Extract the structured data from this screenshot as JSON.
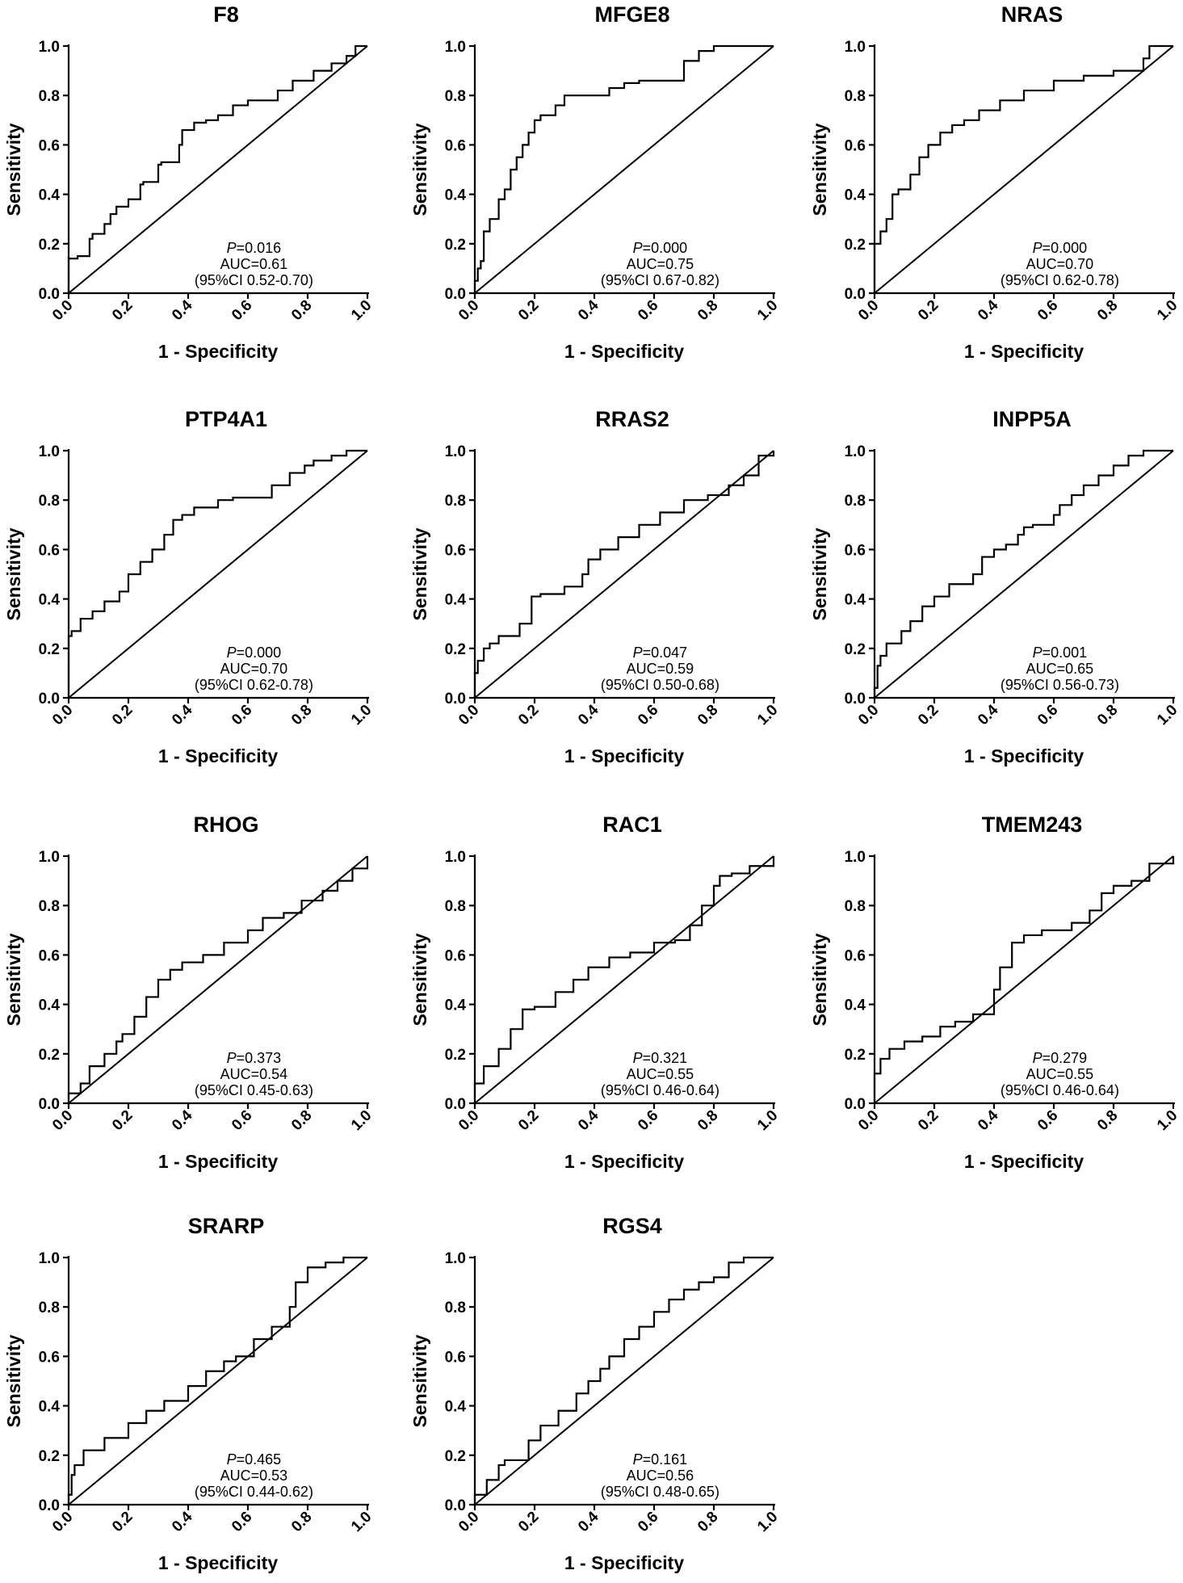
{
  "figure": {
    "xlabel": "1 - Specificity",
    "ylabel": "Sensitivity",
    "tick_labels": [
      "0.0",
      "0.2",
      "0.4",
      "0.6",
      "0.8",
      "1.0"
    ]
  },
  "chart_data": [
    {
      "type": "line",
      "title": "F8",
      "p_prefix": "P",
      "p_text": "=0.016",
      "auc_text": "AUC=0.61",
      "ci_text": "(95%CI 0.52-0.70)",
      "xlabel": "1 - Specificity",
      "ylabel": "Sensitivity",
      "xlim": [
        0,
        1
      ],
      "ylim": [
        0,
        1
      ],
      "roc": [
        [
          0,
          0
        ],
        [
          0,
          0.12
        ],
        [
          0.03,
          0.14
        ],
        [
          0.07,
          0.15
        ],
        [
          0.08,
          0.22
        ],
        [
          0.12,
          0.24
        ],
        [
          0.14,
          0.28
        ],
        [
          0.16,
          0.32
        ],
        [
          0.2,
          0.35
        ],
        [
          0.24,
          0.38
        ],
        [
          0.25,
          0.44
        ],
        [
          0.3,
          0.45
        ],
        [
          0.31,
          0.52
        ],
        [
          0.37,
          0.53
        ],
        [
          0.38,
          0.6
        ],
        [
          0.42,
          0.66
        ],
        [
          0.46,
          0.69
        ],
        [
          0.5,
          0.7
        ],
        [
          0.55,
          0.72
        ],
        [
          0.6,
          0.76
        ],
        [
          0.7,
          0.78
        ],
        [
          0.75,
          0.82
        ],
        [
          0.82,
          0.86
        ],
        [
          0.88,
          0.9
        ],
        [
          0.93,
          0.93
        ],
        [
          0.96,
          0.96
        ],
        [
          1,
          1
        ]
      ]
    },
    {
      "type": "line",
      "title": "MFGE8",
      "p_prefix": "P",
      "p_text": "=0.000",
      "auc_text": "AUC=0.75",
      "ci_text": "(95%CI 0.67-0.82)",
      "xlabel": "1 - Specificity",
      "ylabel": "Sensitivity",
      "xlim": [
        0,
        1
      ],
      "ylim": [
        0,
        1
      ],
      "roc": [
        [
          0,
          0
        ],
        [
          0.01,
          0.05
        ],
        [
          0.02,
          0.1
        ],
        [
          0.03,
          0.13
        ],
        [
          0.05,
          0.25
        ],
        [
          0.08,
          0.3
        ],
        [
          0.1,
          0.38
        ],
        [
          0.12,
          0.42
        ],
        [
          0.14,
          0.5
        ],
        [
          0.16,
          0.55
        ],
        [
          0.18,
          0.6
        ],
        [
          0.2,
          0.65
        ],
        [
          0.22,
          0.7
        ],
        [
          0.27,
          0.72
        ],
        [
          0.3,
          0.76
        ],
        [
          0.4,
          0.8
        ],
        [
          0.45,
          0.8
        ],
        [
          0.5,
          0.83
        ],
        [
          0.55,
          0.85
        ],
        [
          0.6,
          0.86
        ],
        [
          0.7,
          0.86
        ],
        [
          0.75,
          0.94
        ],
        [
          0.8,
          0.98
        ],
        [
          0.86,
          1
        ],
        [
          1,
          1
        ]
      ]
    },
    {
      "type": "line",
      "title": "NRAS",
      "p_prefix": "P",
      "p_text": "=0.000",
      "auc_text": "AUC=0.70",
      "ci_text": "(95%CI 0.62-0.78)",
      "xlabel": "1 - Specificity",
      "ylabel": "Sensitivity",
      "xlim": [
        0,
        1
      ],
      "ylim": [
        0,
        1
      ],
      "roc": [
        [
          0,
          0
        ],
        [
          0,
          0.12
        ],
        [
          0.02,
          0.2
        ],
        [
          0.04,
          0.25
        ],
        [
          0.06,
          0.3
        ],
        [
          0.08,
          0.4
        ],
        [
          0.12,
          0.42
        ],
        [
          0.15,
          0.48
        ],
        [
          0.18,
          0.55
        ],
        [
          0.22,
          0.6
        ],
        [
          0.26,
          0.65
        ],
        [
          0.3,
          0.68
        ],
        [
          0.35,
          0.7
        ],
        [
          0.42,
          0.74
        ],
        [
          0.5,
          0.78
        ],
        [
          0.6,
          0.82
        ],
        [
          0.7,
          0.86
        ],
        [
          0.8,
          0.88
        ],
        [
          0.85,
          0.9
        ],
        [
          0.9,
          0.9
        ],
        [
          0.92,
          0.95
        ],
        [
          0.95,
          1
        ],
        [
          1,
          1
        ]
      ]
    },
    {
      "type": "line",
      "title": "PTP4A1",
      "p_prefix": "P",
      "p_text": "=0.000",
      "auc_text": "AUC=0.70",
      "ci_text": "(95%CI 0.62-0.78)",
      "xlabel": "1 - Specificity",
      "ylabel": "Sensitivity",
      "xlim": [
        0,
        1
      ],
      "ylim": [
        0,
        1
      ],
      "roc": [
        [
          0,
          0
        ],
        [
          0,
          0.16
        ],
        [
          0.01,
          0.25
        ],
        [
          0.04,
          0.27
        ],
        [
          0.08,
          0.32
        ],
        [
          0.12,
          0.35
        ],
        [
          0.17,
          0.39
        ],
        [
          0.2,
          0.43
        ],
        [
          0.24,
          0.5
        ],
        [
          0.28,
          0.55
        ],
        [
          0.32,
          0.6
        ],
        [
          0.35,
          0.66
        ],
        [
          0.38,
          0.72
        ],
        [
          0.42,
          0.74
        ],
        [
          0.5,
          0.77
        ],
        [
          0.55,
          0.8
        ],
        [
          0.6,
          0.81
        ],
        [
          0.68,
          0.81
        ],
        [
          0.7,
          0.86
        ],
        [
          0.74,
          0.86
        ],
        [
          0.79,
          0.91
        ],
        [
          0.82,
          0.94
        ],
        [
          0.88,
          0.96
        ],
        [
          0.93,
          0.98
        ],
        [
          1,
          1
        ]
      ]
    },
    {
      "type": "line",
      "title": "RRAS2",
      "p_prefix": "P",
      "p_text": "=0.047",
      "auc_text": "AUC=0.59",
      "ci_text": "(95%CI 0.50-0.68)",
      "xlabel": "1 - Specificity",
      "ylabel": "Sensitivity",
      "xlim": [
        0,
        1
      ],
      "ylim": [
        0,
        1
      ],
      "roc": [
        [
          0,
          0
        ],
        [
          0.01,
          0.1
        ],
        [
          0.03,
          0.15
        ],
        [
          0.05,
          0.2
        ],
        [
          0.08,
          0.22
        ],
        [
          0.15,
          0.25
        ],
        [
          0.19,
          0.3
        ],
        [
          0.22,
          0.41
        ],
        [
          0.3,
          0.42
        ],
        [
          0.36,
          0.45
        ],
        [
          0.38,
          0.5
        ],
        [
          0.42,
          0.56
        ],
        [
          0.48,
          0.6
        ],
        [
          0.55,
          0.65
        ],
        [
          0.62,
          0.7
        ],
        [
          0.7,
          0.75
        ],
        [
          0.78,
          0.8
        ],
        [
          0.85,
          0.82
        ],
        [
          0.9,
          0.86
        ],
        [
          0.95,
          0.9
        ],
        [
          1,
          0.98
        ],
        [
          1,
          1
        ]
      ]
    },
    {
      "type": "line",
      "title": "INPP5A",
      "p_prefix": "P",
      "p_text": "=0.001",
      "auc_text": "AUC=0.65",
      "ci_text": "(95%CI 0.56-0.73)",
      "xlabel": "1 - Specificity",
      "ylabel": "Sensitivity",
      "xlim": [
        0,
        1
      ],
      "ylim": [
        0,
        1
      ],
      "roc": [
        [
          0,
          0
        ],
        [
          0.01,
          0.04
        ],
        [
          0.02,
          0.13
        ],
        [
          0.04,
          0.17
        ],
        [
          0.09,
          0.22
        ],
        [
          0.12,
          0.27
        ],
        [
          0.16,
          0.31
        ],
        [
          0.2,
          0.37
        ],
        [
          0.25,
          0.41
        ],
        [
          0.33,
          0.46
        ],
        [
          0.36,
          0.5
        ],
        [
          0.4,
          0.57
        ],
        [
          0.44,
          0.6
        ],
        [
          0.48,
          0.62
        ],
        [
          0.5,
          0.66
        ],
        [
          0.53,
          0.69
        ],
        [
          0.6,
          0.7
        ],
        [
          0.62,
          0.74
        ],
        [
          0.66,
          0.78
        ],
        [
          0.7,
          0.82
        ],
        [
          0.75,
          0.86
        ],
        [
          0.8,
          0.9
        ],
        [
          0.85,
          0.94
        ],
        [
          0.9,
          0.98
        ],
        [
          0.95,
          1
        ],
        [
          1,
          1
        ]
      ]
    },
    {
      "type": "line",
      "title": "RHOG",
      "p_prefix": "P",
      "p_text": "=0.373",
      "auc_text": "AUC=0.54",
      "ci_text": "(95%CI 0.45-0.63)",
      "xlabel": "1 - Specificity",
      "ylabel": "Sensitivity",
      "xlim": [
        0,
        1
      ],
      "ylim": [
        0,
        1
      ],
      "roc": [
        [
          0,
          0
        ],
        [
          0.04,
          0.04
        ],
        [
          0.07,
          0.08
        ],
        [
          0.12,
          0.15
        ],
        [
          0.16,
          0.2
        ],
        [
          0.18,
          0.25
        ],
        [
          0.22,
          0.28
        ],
        [
          0.26,
          0.35
        ],
        [
          0.3,
          0.43
        ],
        [
          0.34,
          0.5
        ],
        [
          0.38,
          0.54
        ],
        [
          0.45,
          0.57
        ],
        [
          0.52,
          0.6
        ],
        [
          0.6,
          0.65
        ],
        [
          0.65,
          0.7
        ],
        [
          0.72,
          0.75
        ],
        [
          0.78,
          0.77
        ],
        [
          0.85,
          0.82
        ],
        [
          0.9,
          0.86
        ],
        [
          0.95,
          0.9
        ],
        [
          1,
          0.95
        ],
        [
          1,
          1
        ]
      ]
    },
    {
      "type": "line",
      "title": "RAC1",
      "p_prefix": "P",
      "p_text": "=0.321",
      "auc_text": "AUC=0.55",
      "ci_text": "(95%CI 0.46-0.64)",
      "xlabel": "1 - Specificity",
      "ylabel": "Sensitivity",
      "xlim": [
        0,
        1
      ],
      "ylim": [
        0,
        1
      ],
      "roc": [
        [
          0,
          0
        ],
        [
          0,
          0.06
        ],
        [
          0.03,
          0.08
        ],
        [
          0.08,
          0.15
        ],
        [
          0.12,
          0.22
        ],
        [
          0.16,
          0.3
        ],
        [
          0.2,
          0.38
        ],
        [
          0.27,
          0.39
        ],
        [
          0.33,
          0.45
        ],
        [
          0.38,
          0.5
        ],
        [
          0.45,
          0.55
        ],
        [
          0.52,
          0.59
        ],
        [
          0.6,
          0.61
        ],
        [
          0.67,
          0.65
        ],
        [
          0.72,
          0.66
        ],
        [
          0.76,
          0.72
        ],
        [
          0.8,
          0.8
        ],
        [
          0.82,
          0.88
        ],
        [
          0.86,
          0.92
        ],
        [
          0.92,
          0.93
        ],
        [
          1,
          0.96
        ],
        [
          1,
          1
        ]
      ]
    },
    {
      "type": "line",
      "title": "TMEM243",
      "p_prefix": "P",
      "p_text": "=0.279",
      "auc_text": "AUC=0.55",
      "ci_text": "(95%CI 0.46-0.64)",
      "xlabel": "1 - Specificity",
      "ylabel": "Sensitivity",
      "xlim": [
        0,
        1
      ],
      "ylim": [
        0,
        1
      ],
      "roc": [
        [
          0,
          0
        ],
        [
          0,
          0.08
        ],
        [
          0.02,
          0.12
        ],
        [
          0.05,
          0.18
        ],
        [
          0.1,
          0.22
        ],
        [
          0.16,
          0.25
        ],
        [
          0.22,
          0.27
        ],
        [
          0.27,
          0.31
        ],
        [
          0.33,
          0.33
        ],
        [
          0.4,
          0.36
        ],
        [
          0.42,
          0.46
        ],
        [
          0.46,
          0.55
        ],
        [
          0.5,
          0.65
        ],
        [
          0.56,
          0.68
        ],
        [
          0.66,
          0.7
        ],
        [
          0.72,
          0.73
        ],
        [
          0.76,
          0.78
        ],
        [
          0.8,
          0.85
        ],
        [
          0.86,
          0.88
        ],
        [
          0.92,
          0.9
        ],
        [
          1,
          0.97
        ],
        [
          1,
          1
        ]
      ]
    },
    {
      "type": "line",
      "title": "SRARP",
      "p_prefix": "P",
      "p_text": "=0.465",
      "auc_text": "AUC=0.53",
      "ci_text": "(95%CI 0.44-0.62)",
      "xlabel": "1 - Specificity",
      "ylabel": "Sensitivity",
      "xlim": [
        0,
        1
      ],
      "ylim": [
        0,
        1
      ],
      "roc": [
        [
          0,
          0
        ],
        [
          0.01,
          0.04
        ],
        [
          0.02,
          0.12
        ],
        [
          0.05,
          0.16
        ],
        [
          0.12,
          0.22
        ],
        [
          0.2,
          0.27
        ],
        [
          0.26,
          0.33
        ],
        [
          0.32,
          0.38
        ],
        [
          0.4,
          0.42
        ],
        [
          0.46,
          0.48
        ],
        [
          0.52,
          0.54
        ],
        [
          0.56,
          0.58
        ],
        [
          0.62,
          0.6
        ],
        [
          0.68,
          0.67
        ],
        [
          0.74,
          0.72
        ],
        [
          0.76,
          0.8
        ],
        [
          0.8,
          0.9
        ],
        [
          0.86,
          0.96
        ],
        [
          0.92,
          0.98
        ],
        [
          1,
          1
        ]
      ]
    },
    {
      "type": "line",
      "title": "RGS4",
      "p_prefix": "P",
      "p_text": "=0.161",
      "auc_text": "AUC=0.56",
      "ci_text": "(95%CI 0.48-0.65)",
      "xlabel": "1 - Specificity",
      "ylabel": "Sensitivity",
      "xlim": [
        0,
        1
      ],
      "ylim": [
        0,
        1
      ],
      "roc": [
        [
          0,
          0
        ],
        [
          0.04,
          0.04
        ],
        [
          0.08,
          0.1
        ],
        [
          0.1,
          0.16
        ],
        [
          0.18,
          0.18
        ],
        [
          0.22,
          0.26
        ],
        [
          0.28,
          0.32
        ],
        [
          0.34,
          0.38
        ],
        [
          0.38,
          0.45
        ],
        [
          0.42,
          0.5
        ],
        [
          0.45,
          0.55
        ],
        [
          0.5,
          0.6
        ],
        [
          0.55,
          0.67
        ],
        [
          0.6,
          0.72
        ],
        [
          0.65,
          0.78
        ],
        [
          0.7,
          0.83
        ],
        [
          0.75,
          0.87
        ],
        [
          0.8,
          0.9
        ],
        [
          0.85,
          0.92
        ],
        [
          0.9,
          0.98
        ],
        [
          0.96,
          1
        ],
        [
          1,
          1
        ]
      ]
    }
  ]
}
